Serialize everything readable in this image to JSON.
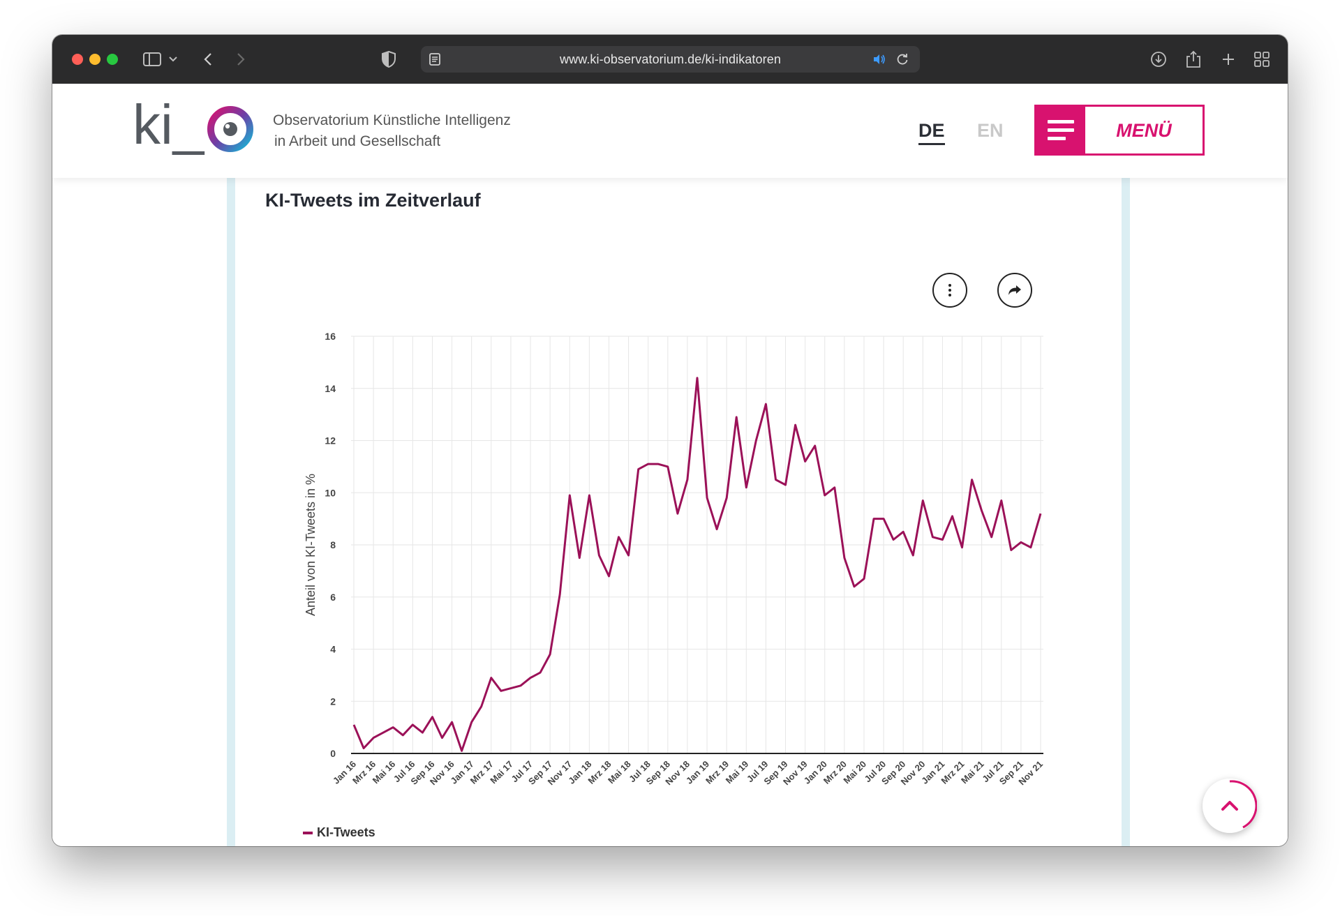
{
  "browser": {
    "url": "www.ki-observatorium.de/ki-indikatoren"
  },
  "header": {
    "logo_text": "ki_",
    "tagline_line1": "Observatorium Künstliche Intelligenz",
    "tagline_line2": "in Arbeit und Gesellschaft",
    "lang_de": "DE",
    "lang_en": "EN",
    "menu_label": "MENÜ",
    "brand_color": "#d8126f"
  },
  "main": {
    "chart_title": "KI-Tweets im Zeitverlauf"
  },
  "chart_data": {
    "type": "line",
    "title": "KI-Tweets im Zeitverlauf",
    "xlabel": "",
    "ylabel": "Anteil von KI-Tweets in %",
    "ylim": [
      0,
      16
    ],
    "yticks": [
      0,
      2,
      4,
      6,
      8,
      10,
      12,
      14,
      16
    ],
    "xtick_labels": [
      "Jan 16",
      "Mrz 16",
      "Mai 16",
      "Jul 16",
      "Sep 16",
      "Nov 16",
      "Jan 17",
      "Mrz 17",
      "Mai 17",
      "Jul 17",
      "Sep 17",
      "Nov 17",
      "Jan 18",
      "Mrz 18",
      "Mai 18",
      "Jul 18",
      "Sep 18",
      "Nov 18",
      "Jan 19",
      "Mrz 19",
      "Mai 19",
      "Jul 19",
      "Sep 19",
      "Nov 19",
      "Jan 20",
      "Mrz 20",
      "Mai 20",
      "Jul 20",
      "Sep 20",
      "Nov 20",
      "Jan 21",
      "Mrz 21",
      "Mai 21",
      "Jul 21",
      "Sep 21",
      "Nov 21"
    ],
    "grid": true,
    "legend": "bottom-left",
    "series": [
      {
        "name": "KI-Tweets",
        "color": "#9b1158",
        "x_start": "Jan 16",
        "frequency": "monthly",
        "values": [
          1.1,
          0.2,
          0.6,
          0.8,
          1.0,
          0.7,
          1.1,
          0.8,
          1.4,
          0.6,
          1.2,
          0.1,
          1.2,
          1.8,
          2.9,
          2.4,
          2.5,
          2.6,
          2.9,
          3.1,
          3.8,
          6.1,
          9.9,
          7.5,
          9.9,
          7.6,
          6.8,
          8.3,
          7.6,
          10.9,
          11.1,
          11.1,
          11.0,
          9.2,
          10.5,
          14.4,
          9.8,
          8.6,
          9.8,
          12.9,
          10.2,
          12.0,
          13.4,
          10.5,
          10.3,
          12.6,
          11.2,
          11.8,
          9.9,
          10.2,
          7.5,
          6.4,
          6.7,
          9.0,
          9.0,
          8.2,
          8.5,
          7.6,
          9.7,
          8.3,
          8.2,
          9.1,
          7.9,
          10.5,
          9.3,
          8.3,
          9.7,
          7.8,
          8.1,
          7.9,
          9.2
        ]
      }
    ]
  }
}
